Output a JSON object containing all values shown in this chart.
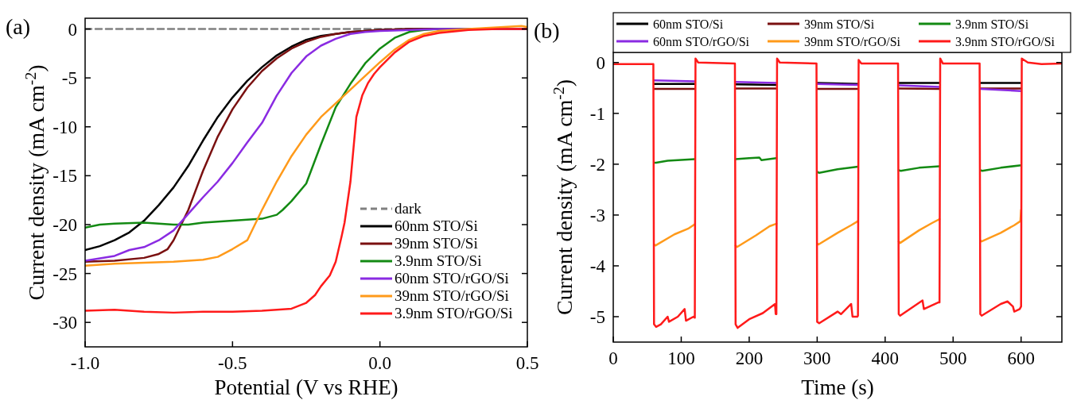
{
  "chart_data": [
    {
      "type": "line",
      "title": "(a)",
      "xlabel": "Potential (V vs RHE)",
      "ylabel": "Current density (mA cm$^{-2}$)",
      "xlim": [
        -1,
        0.5
      ],
      "xticks": [
        {
          "value": -1,
          "label": "-1.0"
        },
        {
          "value": -0.5,
          "label": "-0.5"
        },
        {
          "value": 0,
          "label": "0.0"
        },
        {
          "value": 0.5,
          "label": "0.5"
        }
      ],
      "ylim": [
        -32.5,
        1.1
      ],
      "yticks": [
        -30,
        -25,
        -20,
        -15,
        -10,
        -5,
        0
      ],
      "grid": false,
      "legend": "bottom right",
      "marker": "none",
      "series": [
        {
          "name": "dark",
          "color": "#808080",
          "line_style": "dashed",
          "x": [
            -1,
            0.5
          ],
          "values": [
            0,
            0
          ]
        },
        {
          "name": "60nm STO/Si",
          "color": "#000000",
          "x": [
            -1,
            -0.95,
            -0.9,
            -0.85,
            -0.8,
            -0.75,
            -0.7,
            -0.65,
            -0.6,
            -0.55,
            -0.5,
            -0.45,
            -0.4,
            -0.35,
            -0.3,
            -0.25,
            -0.2,
            -0.1,
            0,
            0.1,
            0.5
          ],
          "values": [
            -22.6,
            -22.2,
            -21.6,
            -20.8,
            -19.6,
            -18,
            -16.2,
            -14,
            -11.4,
            -9,
            -7,
            -5.3,
            -3.9,
            -2.7,
            -1.8,
            -1.1,
            -0.7,
            -0.3,
            -0.1,
            0,
            0
          ]
        },
        {
          "name": "39nm STO/Si",
          "color": "#7a1010",
          "x": [
            -1,
            -0.9,
            -0.8,
            -0.75,
            -0.72,
            -0.7,
            -0.65,
            -0.6,
            -0.55,
            -0.5,
            -0.45,
            -0.4,
            -0.35,
            -0.3,
            -0.25,
            -0.2,
            -0.15,
            -0.1,
            0,
            0.1,
            0.5
          ],
          "values": [
            -23.8,
            -23.7,
            -23.4,
            -23,
            -22.5,
            -21.6,
            -18.5,
            -14.5,
            -11,
            -8.2,
            -6,
            -4.3,
            -3,
            -2,
            -1.3,
            -0.8,
            -0.5,
            -0.3,
            -0.1,
            0,
            0
          ]
        },
        {
          "name": "3.9nm STO/Si",
          "color": "#138a13",
          "x": [
            -1,
            -0.95,
            -0.9,
            -0.8,
            -0.7,
            -0.65,
            -0.6,
            -0.5,
            -0.4,
            -0.35,
            -0.33,
            -0.3,
            -0.25,
            -0.2,
            -0.15,
            -0.1,
            -0.05,
            0,
            0.05,
            0.1,
            0.15,
            0.2,
            0.5
          ],
          "values": [
            -20.3,
            -20,
            -19.9,
            -19.8,
            -20,
            -20,
            -19.8,
            -19.6,
            -19.4,
            -19,
            -18.5,
            -17.6,
            -15.8,
            -11.8,
            -8,
            -5.6,
            -3.5,
            -2,
            -0.9,
            -0.3,
            -0.1,
            0,
            0
          ]
        },
        {
          "name": "60nm STO/rGO/Si",
          "color": "#8a2be2",
          "x": [
            -1,
            -0.9,
            -0.85,
            -0.8,
            -0.75,
            -0.7,
            -0.65,
            -0.6,
            -0.55,
            -0.5,
            -0.45,
            -0.4,
            -0.35,
            -0.3,
            -0.25,
            -0.2,
            -0.15,
            -0.1,
            -0.05,
            0,
            0.1,
            0.2,
            0.5
          ],
          "values": [
            -23.7,
            -23.2,
            -22.6,
            -22.3,
            -21.6,
            -20.6,
            -18.9,
            -17.2,
            -15.6,
            -13.7,
            -11.6,
            -9.6,
            -6.8,
            -4.5,
            -2.8,
            -1.7,
            -1,
            -0.5,
            -0.3,
            -0.2,
            -0.1,
            0,
            0
          ]
        },
        {
          "name": "39nm STO/rGO/Si",
          "color": "#ff9a1a",
          "x": [
            -1,
            -0.9,
            -0.8,
            -0.7,
            -0.6,
            -0.55,
            -0.5,
            -0.45,
            -0.4,
            -0.35,
            -0.3,
            -0.25,
            -0.2,
            -0.15,
            -0.1,
            -0.05,
            0,
            0.05,
            0.1,
            0.15,
            0.2,
            0.3,
            0.48,
            0.5
          ],
          "values": [
            -24.2,
            -24,
            -23.9,
            -23.8,
            -23.6,
            -23.3,
            -22.5,
            -21.6,
            -18.5,
            -15.6,
            -13,
            -10.8,
            -9,
            -7.6,
            -6.2,
            -4.8,
            -3.4,
            -2.1,
            -1.1,
            -0.5,
            -0.2,
            0,
            0.3,
            0.2
          ]
        },
        {
          "name": "3.9nm STO/rGO/Si",
          "color": "#ff1a1a",
          "x": [
            -1,
            -0.9,
            -0.8,
            -0.7,
            -0.6,
            -0.5,
            -0.4,
            -0.3,
            -0.25,
            -0.22,
            -0.2,
            -0.17,
            -0.15,
            -0.13,
            -0.12,
            -0.1,
            -0.08,
            -0.06,
            -0.04,
            -0.02,
            0,
            0.05,
            0.1,
            0.15,
            0.2,
            0.3,
            0.4,
            0.5
          ],
          "values": [
            -28.8,
            -28.7,
            -28.9,
            -29,
            -28.9,
            -28.9,
            -28.8,
            -28.6,
            -28,
            -27.2,
            -26.3,
            -25.2,
            -23.8,
            -21.2,
            -19.8,
            -15.6,
            -9,
            -6.8,
            -5.5,
            -4.6,
            -3.9,
            -2.4,
            -1.3,
            -0.7,
            -0.4,
            -0.1,
            0,
            0
          ]
        }
      ]
    },
    {
      "type": "line",
      "title": "(b)",
      "xlabel": "Time (s)",
      "ylabel": "Current density (mA cm$^{-2}$)",
      "xlim": [
        0,
        660
      ],
      "xticks": [
        0,
        100,
        200,
        300,
        400,
        500,
        600
      ],
      "ylim": [
        -5.5,
        0.2
      ],
      "yticks": [
        -5,
        -4,
        -3,
        -2,
        -1,
        0
      ],
      "grid": false,
      "legend": "top",
      "marker": "none",
      "series": [
        {
          "name": "60nm STO/Si",
          "color": "#000000",
          "x": [
            60,
            120,
            121,
            179,
            180,
            240,
            241,
            299,
            300,
            360,
            361,
            419,
            420,
            480,
            481,
            539,
            540,
            600
          ],
          "values": [
            -0.42,
            -0.42,
            null,
            null,
            -0.43,
            -0.44,
            null,
            null,
            -0.4,
            -0.42,
            null,
            null,
            -0.4,
            -0.4,
            null,
            null,
            -0.4,
            -0.4
          ]
        },
        {
          "name": "39nm STO/Si",
          "color": "#7a1010",
          "x": [
            60,
            120,
            121,
            179,
            180,
            240,
            241,
            299,
            300,
            360,
            361,
            419,
            420,
            480,
            481,
            539,
            540,
            600
          ],
          "values": [
            -0.52,
            -0.52,
            null,
            null,
            -0.51,
            -0.51,
            null,
            null,
            -0.52,
            -0.52,
            null,
            null,
            -0.51,
            -0.52,
            null,
            null,
            -0.51,
            -0.51
          ]
        },
        {
          "name": "3.9nm STO/Si",
          "color": "#138a13",
          "x": [
            60,
            63,
            80,
            120,
            121,
            179,
            180,
            200,
            215,
            218,
            240,
            241,
            299,
            300,
            303,
            330,
            360,
            361,
            419,
            420,
            423,
            450,
            480,
            481,
            539,
            540,
            543,
            570,
            600
          ],
          "values": [
            -1.97,
            -1.97,
            -1.93,
            -1.9,
            null,
            null,
            -1.9,
            -1.88,
            -1.87,
            -1.92,
            -1.88,
            null,
            null,
            -2.15,
            -2.17,
            -2.1,
            -2.05,
            null,
            null,
            -2.12,
            -2.13,
            -2.07,
            -2.04,
            null,
            null,
            -2.12,
            -2.13,
            -2.07,
            -2.02
          ]
        },
        {
          "name": "60nm STO/rGO/Si",
          "color": "#8a2be2",
          "x": [
            60,
            120,
            121,
            179,
            180,
            240,
            241,
            299,
            300,
            360,
            361,
            419,
            420,
            480,
            481,
            539,
            540,
            600
          ],
          "values": [
            -0.35,
            -0.37,
            null,
            null,
            -0.38,
            -0.4,
            null,
            null,
            -0.42,
            -0.44,
            null,
            null,
            -0.45,
            -0.48,
            null,
            null,
            -0.52,
            -0.56
          ]
        },
        {
          "name": "39nm STO/rGO/Si",
          "color": "#ff9a1a",
          "x": [
            60,
            62,
            90,
            110,
            120,
            121,
            179,
            180,
            182,
            210,
            230,
            240,
            241,
            299,
            300,
            302,
            330,
            350,
            360,
            361,
            419,
            420,
            422,
            450,
            470,
            480,
            481,
            539,
            540,
            542,
            570,
            590,
            599,
            600
          ],
          "values": [
            -3.58,
            -3.6,
            -3.38,
            -3.27,
            -3.18,
            null,
            null,
            -3.6,
            -3.63,
            -3.4,
            -3.22,
            -3.17,
            null,
            null,
            -3.56,
            -3.58,
            -3.35,
            -3.2,
            -3.12,
            null,
            null,
            -3.52,
            -3.55,
            -3.3,
            -3.15,
            -3.08,
            null,
            null,
            -3.5,
            -3.52,
            -3.35,
            -3.2,
            -3.12,
            -2.9
          ]
        },
        {
          "name": "3.9nm STO/rGO/Si",
          "color": "#ff1a1a",
          "x": [
            0,
            59,
            60,
            63,
            70,
            80,
            82,
            95,
            105,
            107,
            118,
            120,
            121,
            125,
            179,
            180,
            183,
            200,
            220,
            238,
            239,
            240,
            241,
            245,
            299,
            300,
            303,
            330,
            335,
            350,
            352,
            359,
            360,
            361,
            365,
            419,
            420,
            422,
            455,
            457,
            478,
            480,
            481,
            485,
            539,
            540,
            542,
            570,
            580,
            588,
            590,
            598,
            600,
            601,
            610,
            630,
            660
          ],
          "values": [
            -0.03,
            -0.03,
            -5.15,
            -5.2,
            -5.15,
            -5,
            -5.1,
            -5,
            -4.85,
            -5.08,
            -5,
            -5.02,
            0.08,
            0,
            -0.02,
            -5.15,
            -5.22,
            -5.05,
            -4.93,
            -4.75,
            -4.95,
            -4.95,
            0.08,
            0,
            -0.02,
            -5.1,
            -5.13,
            -4.9,
            -4.95,
            -4.75,
            -5,
            -5,
            -4.98,
            0.05,
            -0.02,
            -0.02,
            -4.95,
            -4.98,
            -4.68,
            -4.85,
            -4.72,
            -4.72,
            0.08,
            -0.02,
            -0.02,
            -4.95,
            -4.98,
            -4.75,
            -4.7,
            -4.8,
            -4.9,
            -4.85,
            -4.8,
            0.08,
            0,
            -0.03,
            -0.02
          ]
        }
      ]
    }
  ]
}
